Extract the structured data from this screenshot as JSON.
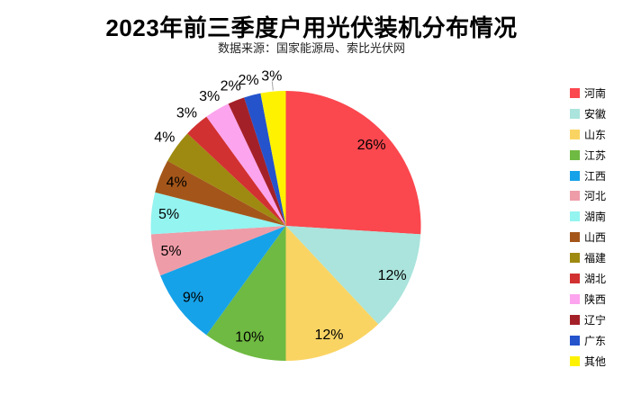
{
  "window": {
    "background": "#FFFFFF"
  },
  "chart_data": {
    "type": "pie",
    "title": "2023年前三季度户用光伏装机分布情况",
    "subtitle": "数据来源：国家能源局、索比光伏网",
    "legend_position": "right",
    "start_angle_deg": 0,
    "direction": "clockwise",
    "label_color": "#000000",
    "leader_line_color": "#a6a6a6",
    "slices": [
      {
        "label": "河南",
        "value": 26,
        "pct_label": "26%",
        "color": "#FB474E",
        "label_pos": "inside"
      },
      {
        "label": "安徽",
        "value": 12,
        "pct_label": "12%",
        "color": "#AAE4DC",
        "label_pos": "inside"
      },
      {
        "label": "山东",
        "value": 12,
        "pct_label": "12%",
        "color": "#FAD463",
        "label_pos": "inside"
      },
      {
        "label": "江苏",
        "value": 10,
        "pct_label": "10%",
        "color": "#6FBA42",
        "label_pos": "inside"
      },
      {
        "label": "江西",
        "value": 9,
        "pct_label": "9%",
        "color": "#16A2E9",
        "label_pos": "inside"
      },
      {
        "label": "河北",
        "value": 5,
        "pct_label": "5%",
        "color": "#EE9CA8",
        "label_pos": "inside"
      },
      {
        "label": "湖南",
        "value": 5,
        "pct_label": "5%",
        "color": "#93F4F0",
        "label_pos": "inside"
      },
      {
        "label": "山西",
        "value": 4,
        "pct_label": "4%",
        "color": "#A4561A",
        "label_pos": "inside"
      },
      {
        "label": "福建",
        "value": 4,
        "pct_label": "4%",
        "color": "#9E8A10",
        "label_pos": "outside"
      },
      {
        "label": "湖北",
        "value": 3,
        "pct_label": "3%",
        "color": "#D23131",
        "label_pos": "outside"
      },
      {
        "label": "陕西",
        "value": 3,
        "pct_label": "3%",
        "color": "#FCA4EE",
        "label_pos": "outside"
      },
      {
        "label": "辽宁",
        "value": 2,
        "pct_label": "2%",
        "color": "#A42028",
        "label_pos": "outside"
      },
      {
        "label": "广东",
        "value": 2,
        "pct_label": "2%",
        "color": "#2453CC",
        "label_pos": "outside"
      },
      {
        "label": "其他",
        "value": 3,
        "pct_label": "3%",
        "color": "#FFF200",
        "label_pos": "outside",
        "leader_line": true
      }
    ]
  }
}
